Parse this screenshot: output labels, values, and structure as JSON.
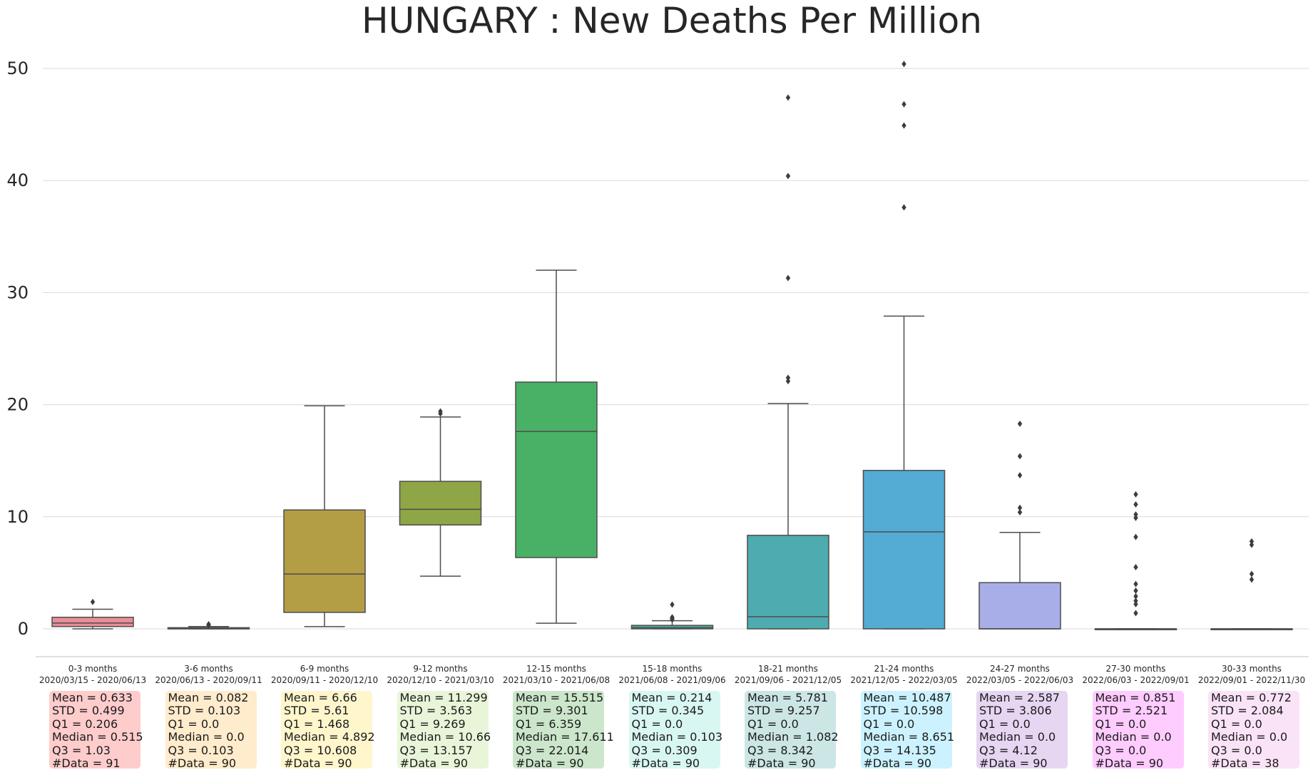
{
  "chart_data": {
    "type": "box",
    "title": "HUNGARY : New Deaths Per Million",
    "xlabel": "",
    "ylabel": "",
    "ylim": [
      0,
      50
    ],
    "yticks": [
      0,
      10,
      20,
      30,
      40,
      50
    ],
    "grid": true,
    "stat_labels": {
      "mean": "Mean",
      "std": "STD",
      "q1": "Q1",
      "median": "Median",
      "q3": "Q3",
      "n": "#Data"
    },
    "categories": [
      {
        "label": "0-3 months",
        "range": "2020/03/15 - 2020/06/13",
        "color": "#e98d97",
        "box_bg": "#ffcccc",
        "whisker_low": 0.0,
        "q1": 0.206,
        "median": 0.515,
        "q3": 1.03,
        "whisker_high": 1.75,
        "outliers": [
          2.4
        ],
        "stats": {
          "mean": "0.633",
          "std": "0.499",
          "q1": "0.206",
          "median": "0.515",
          "q3": "1.03",
          "n": "91"
        }
      },
      {
        "label": "3-6 months",
        "range": "2020/06/13 - 2020/09/11",
        "color": "#d99a52",
        "box_bg": "#ffeccc",
        "whisker_low": 0.0,
        "q1": 0.0,
        "median": 0.0,
        "q3": 0.103,
        "whisker_high": 0.21,
        "outliers": [
          0.31,
          0.41
        ],
        "stats": {
          "mean": "0.082",
          "std": "0.103",
          "q1": "0.0",
          "median": "0.0",
          "q3": "0.103",
          "n": "90"
        }
      },
      {
        "label": "6-9 months",
        "range": "2020/09/11 - 2020/12/10",
        "color": "#b39d45",
        "box_bg": "#fff6cc",
        "whisker_low": 0.2,
        "q1": 1.468,
        "median": 4.892,
        "q3": 10.608,
        "whisker_high": 19.9,
        "outliers": [],
        "stats": {
          "mean": "6.66",
          "std": "5.61",
          "q1": "1.468",
          "median": "4.892",
          "q3": "10.608",
          "n": "90"
        }
      },
      {
        "label": "9-12 months",
        "range": "2020/12/10 - 2021/03/10",
        "color": "#8fa646",
        "box_bg": "#e9f5d9",
        "whisker_low": 4.7,
        "q1": 9.269,
        "median": 10.66,
        "q3": 13.157,
        "whisker_high": 18.9,
        "outliers": [
          19.2,
          19.4
        ],
        "stats": {
          "mean": "11.299",
          "std": "3.563",
          "q1": "9.269",
          "median": "10.66",
          "q3": "13.157",
          "n": "90"
        }
      },
      {
        "label": "12-15 months",
        "range": "2021/03/10 - 2021/06/08",
        "color": "#48b166",
        "box_bg": "#cce6cc",
        "whisker_low": 0.5,
        "q1": 6.359,
        "median": 17.611,
        "q3": 22.014,
        "whisker_high": 32.0,
        "outliers": [],
        "stats": {
          "mean": "15.515",
          "std": "9.301",
          "q1": "6.359",
          "median": "17.611",
          "q3": "22.014",
          "n": "90"
        }
      },
      {
        "label": "15-18 months",
        "range": "2021/06/08 - 2021/09/06",
        "color": "#4ab09d",
        "box_bg": "#d9f7f2",
        "whisker_low": 0.0,
        "q1": 0.0,
        "median": 0.103,
        "q3": 0.309,
        "whisker_high": 0.72,
        "outliers": [
          0.82,
          0.93,
          1.03,
          2.16
        ],
        "stats": {
          "mean": "0.214",
          "std": "0.345",
          "q1": "0.0",
          "median": "0.103",
          "q3": "0.309",
          "n": "90"
        }
      },
      {
        "label": "18-21 months",
        "range": "2021/09/06 - 2021/12/05",
        "color": "#4eabb0",
        "box_bg": "#cce6e6",
        "whisker_low": 0.0,
        "q1": 0.0,
        "median": 1.082,
        "q3": 8.342,
        "whisker_high": 20.1,
        "outliers": [
          22.1,
          22.4,
          31.3,
          40.4,
          47.4
        ],
        "stats": {
          "mean": "5.781",
          "std": "9.257",
          "q1": "0.0",
          "median": "1.082",
          "q3": "8.342",
          "n": "90"
        }
      },
      {
        "label": "21-24 months",
        "range": "2021/12/05 - 2022/03/05",
        "color": "#54abd3",
        "box_bg": "#ccf2ff",
        "whisker_low": 0.0,
        "q1": 0.0,
        "median": 8.651,
        "q3": 14.135,
        "whisker_high": 27.9,
        "outliers": [
          37.6,
          44.9,
          46.8,
          50.4
        ],
        "stats": {
          "mean": "10.487",
          "std": "10.598",
          "q1": "0.0",
          "median": "8.651",
          "q3": "14.135",
          "n": "90"
        }
      },
      {
        "label": "24-27 months",
        "range": "2022/03/05 - 2022/06/03",
        "color": "#a8aee8",
        "box_bg": "#e6d6f2",
        "whisker_low": 0.0,
        "q1": 0.0,
        "median": 0.0,
        "q3": 4.12,
        "whisker_high": 8.6,
        "outliers": [
          10.4,
          10.8,
          13.7,
          15.4,
          18.3
        ],
        "stats": {
          "mean": "2.587",
          "std": "3.806",
          "q1": "0.0",
          "median": "0.0",
          "q3": "4.12",
          "n": "90"
        }
      },
      {
        "label": "27-30 months",
        "range": "2022/06/03 - 2022/09/01",
        "color": "#d99ed9",
        "box_bg": "#ffccff",
        "whisker_low": 0.0,
        "q1": 0.0,
        "median": 0.0,
        "q3": 0.0,
        "whisker_high": 0.0,
        "outliers": [
          1.4,
          2.2,
          2.5,
          2.9,
          3.4,
          4.0,
          5.5,
          8.2,
          9.9,
          10.2,
          11.1,
          12.0
        ],
        "stats": {
          "mean": "0.851",
          "std": "2.521",
          "q1": "0.0",
          "median": "0.0",
          "q3": "0.0",
          "n": "90"
        }
      },
      {
        "label": "30-33 months",
        "range": "2022/09/01 - 2022/11/30",
        "color": "#e6a3d6",
        "box_bg": "#fbe3f7",
        "whisker_low": 0.0,
        "q1": 0.0,
        "median": 0.0,
        "q3": 0.0,
        "whisker_high": 0.0,
        "outliers": [
          4.4,
          4.9,
          7.5,
          7.8
        ],
        "stats": {
          "mean": "0.772",
          "std": "2.084",
          "q1": "0.0",
          "median": "0.0",
          "q3": "0.0",
          "n": "38"
        }
      }
    ]
  }
}
